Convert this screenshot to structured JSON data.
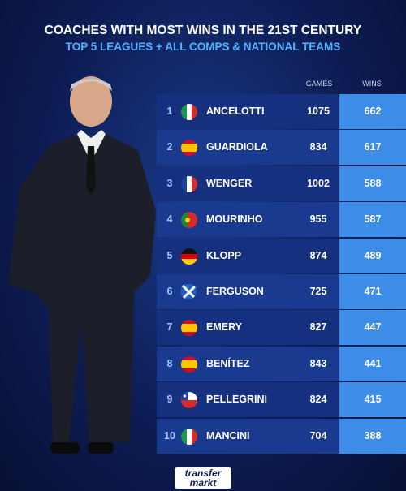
{
  "header": {
    "title": "COACHES WITH MOST WINS IN THE 21ST CENTURY",
    "subtitle": "TOP 5 LEAGUES + ALL COMPS & NATIONAL TEAMS"
  },
  "table": {
    "columns": [
      "GAMES",
      "WINS"
    ],
    "rows": [
      {
        "rank": 1,
        "name": "ANCELOTTI",
        "games": 1075,
        "wins": 662
      },
      {
        "rank": 2,
        "name": "GUARDIOLA",
        "games": 834,
        "wins": 617
      },
      {
        "rank": 3,
        "name": "WENGER",
        "games": 1002,
        "wins": 588
      },
      {
        "rank": 4,
        "name": "MOURINHO",
        "games": 955,
        "wins": 587
      },
      {
        "rank": 5,
        "name": "KLOPP",
        "games": 874,
        "wins": 489
      },
      {
        "rank": 6,
        "name": "FERGUSON",
        "games": 725,
        "wins": 471
      },
      {
        "rank": 7,
        "name": "EMERY",
        "games": 827,
        "wins": 447
      },
      {
        "rank": 8,
        "name": "BENÍTEZ",
        "games": 843,
        "wins": 441
      },
      {
        "rank": 9,
        "name": "PELLEGRINI",
        "games": 824,
        "wins": 415
      },
      {
        "rank": 10,
        "name": "MANCINI",
        "games": 704,
        "wins": 388
      }
    ]
  },
  "footer": {
    "logo_top": "transfer",
    "logo_bottom": "markt"
  }
}
